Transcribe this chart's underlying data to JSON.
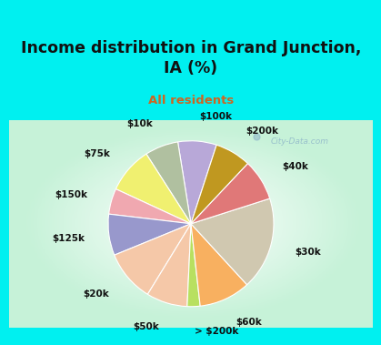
{
  "title": "Income distribution in Grand Junction,\nIA (%)",
  "subtitle": "All residents",
  "labels": [
    "$100k",
    "$10k",
    "$75k",
    "$150k",
    "$125k",
    "$20k",
    "$50k",
    "> $200k",
    "$60k",
    "$30k",
    "$40k",
    "$200k"
  ],
  "values": [
    7.5,
    6.5,
    9,
    5,
    8,
    10,
    8,
    2.5,
    10,
    18,
    8,
    7
  ],
  "colors": [
    "#b8a8d8",
    "#b0c0a0",
    "#f0f070",
    "#f0a8b0",
    "#9898cc",
    "#f5c8a8",
    "#f5c8a8",
    "#b8e060",
    "#f8b060",
    "#d0c8b0",
    "#e07878",
    "#c09820"
  ],
  "bg_color": "#00f0f0",
  "title_color": "#111111",
  "subtitle_color": "#cc6622",
  "watermark": "City-Data.com",
  "startangle": 72,
  "label_fontsize": 7.5,
  "title_fontsize": 12.5
}
